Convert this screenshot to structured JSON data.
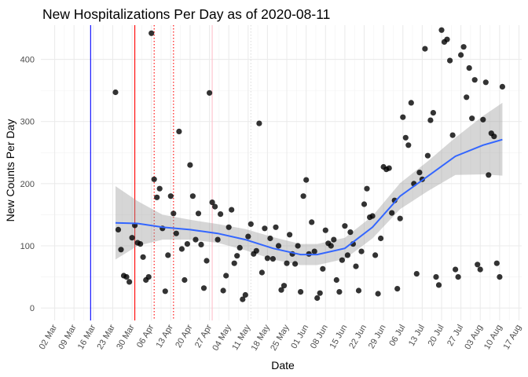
{
  "chart_data": {
    "type": "scatter",
    "title": "New Hospitalizations Per Day as of 2020-08-11",
    "xlabel": "Date",
    "ylabel": "New Counts Per Day",
    "xlim": [
      "2020-02-26",
      "2020-08-18"
    ],
    "ylim": [
      -20,
      455
    ],
    "x_ticks": [
      "2020-03-02",
      "2020-03-09",
      "2020-03-16",
      "2020-03-23",
      "2020-03-30",
      "2020-04-06",
      "2020-04-13",
      "2020-04-20",
      "2020-04-27",
      "2020-05-04",
      "2020-05-11",
      "2020-05-18",
      "2020-05-25",
      "2020-06-01",
      "2020-06-08",
      "2020-06-15",
      "2020-06-22",
      "2020-06-29",
      "2020-07-06",
      "2020-07-13",
      "2020-07-20",
      "2020-07-27",
      "2020-08-03",
      "2020-08-10",
      "2020-08-17"
    ],
    "x_tick_labels": [
      "02 Mar",
      "09 Mar",
      "16 Mar",
      "23 Mar",
      "30 Mar",
      "06 Apr",
      "13 Apr",
      "20 Apr",
      "27 Apr",
      "04 May",
      "11 May",
      "18 May",
      "25 May",
      "01 Jun",
      "08 Jun",
      "15 Jun",
      "22 Jun",
      "29 Jun",
      "06 Jul",
      "13 Jul",
      "20 Jul",
      "27 Jul",
      "03 Aug",
      "10 Aug",
      "17 Aug"
    ],
    "y_ticks": [
      0,
      100,
      200,
      300,
      400
    ],
    "y_tick_labels": [
      "0",
      "100",
      "200",
      "300",
      "400"
    ],
    "grid": true,
    "legend": "none",
    "colors": {
      "points": "#000000",
      "smooth_line": "#3366FF",
      "ribbon": "#999999"
    },
    "vertical_lines": [
      {
        "x": "2020-03-15",
        "color": "#0000ff",
        "style": "solid"
      },
      {
        "x": "2020-03-31",
        "color": "#ff0000",
        "style": "solid"
      },
      {
        "x": "2020-04-07",
        "color": "#ff0000",
        "style": "dotted"
      },
      {
        "x": "2020-04-14",
        "color": "#ff0000",
        "style": "dotted"
      },
      {
        "x": "2020-04-28",
        "color": "#ffc0cb",
        "style": "solid"
      },
      {
        "x": "2020-05-12",
        "color": "#dddddd",
        "style": "dotted"
      }
    ],
    "points": [
      [
        "2020-03-24",
        347
      ],
      [
        "2020-03-25",
        126
      ],
      [
        "2020-03-26",
        94
      ],
      [
        "2020-03-27",
        52
      ],
      [
        "2020-03-28",
        50
      ],
      [
        "2020-03-29",
        42
      ],
      [
        "2020-03-30",
        113
      ],
      [
        "2020-03-31",
        133
      ],
      [
        "2020-04-01",
        105
      ],
      [
        "2020-04-02",
        103
      ],
      [
        "2020-04-03",
        82
      ],
      [
        "2020-04-04",
        45
      ],
      [
        "2020-04-05",
        50
      ],
      [
        "2020-04-06",
        442
      ],
      [
        "2020-04-07",
        207
      ],
      [
        "2020-04-08",
        178
      ],
      [
        "2020-04-09",
        192
      ],
      [
        "2020-04-10",
        128
      ],
      [
        "2020-04-11",
        27
      ],
      [
        "2020-04-12",
        85
      ],
      [
        "2020-04-13",
        180
      ],
      [
        "2020-04-14",
        152
      ],
      [
        "2020-04-15",
        120
      ],
      [
        "2020-04-16",
        284
      ],
      [
        "2020-04-17",
        95
      ],
      [
        "2020-04-18",
        45
      ],
      [
        "2020-04-19",
        103
      ],
      [
        "2020-04-20",
        230
      ],
      [
        "2020-04-21",
        180
      ],
      [
        "2020-04-22",
        110
      ],
      [
        "2020-04-23",
        152
      ],
      [
        "2020-04-24",
        102
      ],
      [
        "2020-04-25",
        32
      ],
      [
        "2020-04-26",
        76
      ],
      [
        "2020-04-27",
        346
      ],
      [
        "2020-04-28",
        170
      ],
      [
        "2020-04-29",
        163
      ],
      [
        "2020-04-30",
        110
      ],
      [
        "2020-05-01",
        151
      ],
      [
        "2020-05-02",
        28
      ],
      [
        "2020-05-03",
        52
      ],
      [
        "2020-05-04",
        130
      ],
      [
        "2020-05-05",
        158
      ],
      [
        "2020-05-06",
        72
      ],
      [
        "2020-05-07",
        84
      ],
      [
        "2020-05-08",
        97
      ],
      [
        "2020-05-09",
        14
      ],
      [
        "2020-05-10",
        21
      ],
      [
        "2020-05-11",
        115
      ],
      [
        "2020-05-12",
        135
      ],
      [
        "2020-05-13",
        87
      ],
      [
        "2020-05-14",
        92
      ],
      [
        "2020-05-15",
        297
      ],
      [
        "2020-05-16",
        57
      ],
      [
        "2020-05-17",
        128
      ],
      [
        "2020-05-18",
        80
      ],
      [
        "2020-05-19",
        112
      ],
      [
        "2020-05-20",
        79
      ],
      [
        "2020-05-21",
        130
      ],
      [
        "2020-05-22",
        100
      ],
      [
        "2020-05-23",
        29
      ],
      [
        "2020-05-24",
        36
      ],
      [
        "2020-05-25",
        72
      ],
      [
        "2020-05-26",
        118
      ],
      [
        "2020-05-27",
        87
      ],
      [
        "2020-05-28",
        71
      ],
      [
        "2020-05-29",
        100
      ],
      [
        "2020-05-30",
        26
      ],
      [
        "2020-05-31",
        180
      ],
      [
        "2020-06-01",
        206
      ],
      [
        "2020-06-02",
        87
      ],
      [
        "2020-06-03",
        138
      ],
      [
        "2020-06-04",
        91
      ],
      [
        "2020-06-05",
        16
      ],
      [
        "2020-06-06",
        24
      ],
      [
        "2020-06-07",
        63
      ],
      [
        "2020-06-08",
        125
      ],
      [
        "2020-06-09",
        104
      ],
      [
        "2020-06-10",
        100
      ],
      [
        "2020-06-11",
        110
      ],
      [
        "2020-06-12",
        45
      ],
      [
        "2020-06-13",
        26
      ],
      [
        "2020-06-14",
        77
      ],
      [
        "2020-06-15",
        132
      ],
      [
        "2020-06-16",
        85
      ],
      [
        "2020-06-17",
        122
      ],
      [
        "2020-06-18",
        103
      ],
      [
        "2020-06-19",
        67
      ],
      [
        "2020-06-20",
        28
      ],
      [
        "2020-06-21",
        91
      ],
      [
        "2020-06-22",
        167
      ],
      [
        "2020-06-23",
        192
      ],
      [
        "2020-06-24",
        146
      ],
      [
        "2020-06-25",
        148
      ],
      [
        "2020-06-26",
        85
      ],
      [
        "2020-06-27",
        23
      ],
      [
        "2020-06-28",
        112
      ],
      [
        "2020-06-29",
        227
      ],
      [
        "2020-06-30",
        223
      ],
      [
        "2020-07-01",
        225
      ],
      [
        "2020-07-02",
        153
      ],
      [
        "2020-07-03",
        173
      ],
      [
        "2020-07-04",
        31
      ],
      [
        "2020-07-05",
        144
      ],
      [
        "2020-07-06",
        307
      ],
      [
        "2020-07-07",
        274
      ],
      [
        "2020-07-08",
        262
      ],
      [
        "2020-07-09",
        330
      ],
      [
        "2020-07-10",
        200
      ],
      [
        "2020-07-11",
        55
      ],
      [
        "2020-07-12",
        218
      ],
      [
        "2020-07-13",
        207
      ],
      [
        "2020-07-14",
        417
      ],
      [
        "2020-07-15",
        245
      ],
      [
        "2020-07-16",
        302
      ],
      [
        "2020-07-17",
        314
      ],
      [
        "2020-07-18",
        50
      ],
      [
        "2020-07-19",
        37
      ],
      [
        "2020-07-20",
        447
      ],
      [
        "2020-07-21",
        428
      ],
      [
        "2020-07-22",
        432
      ],
      [
        "2020-07-23",
        398
      ],
      [
        "2020-07-24",
        278
      ],
      [
        "2020-07-25",
        62
      ],
      [
        "2020-07-26",
        50
      ],
      [
        "2020-07-27",
        407
      ],
      [
        "2020-07-28",
        420
      ],
      [
        "2020-07-29",
        339
      ],
      [
        "2020-07-30",
        386
      ],
      [
        "2020-07-31",
        305
      ],
      [
        "2020-08-01",
        367
      ],
      [
        "2020-08-02",
        70
      ],
      [
        "2020-08-03",
        62
      ],
      [
        "2020-08-04",
        303
      ],
      [
        "2020-08-05",
        363
      ],
      [
        "2020-08-06",
        214
      ],
      [
        "2020-08-07",
        281
      ],
      [
        "2020-08-08",
        276
      ],
      [
        "2020-08-09",
        72
      ],
      [
        "2020-08-10",
        50
      ],
      [
        "2020-08-11",
        356
      ]
    ],
    "smooth": {
      "x": [
        "2020-03-24",
        "2020-04-01",
        "2020-04-10",
        "2020-04-20",
        "2020-04-30",
        "2020-05-10",
        "2020-05-20",
        "2020-05-30",
        "2020-06-05",
        "2020-06-15",
        "2020-06-25",
        "2020-07-05",
        "2020-07-15",
        "2020-07-25",
        "2020-08-04",
        "2020-08-11"
      ],
      "y": [
        137,
        136,
        130,
        126,
        120,
        110,
        96,
        86,
        86,
        96,
        130,
        180,
        212,
        244,
        262,
        271
      ],
      "ci_low": [
        78,
        100,
        110,
        110,
        105,
        93,
        78,
        69,
        69,
        79,
        112,
        159,
        188,
        214,
        215,
        213
      ],
      "ci_high": [
        196,
        172,
        150,
        142,
        135,
        127,
        114,
        103,
        103,
        113,
        148,
        201,
        236,
        274,
        309,
        330
      ]
    }
  }
}
